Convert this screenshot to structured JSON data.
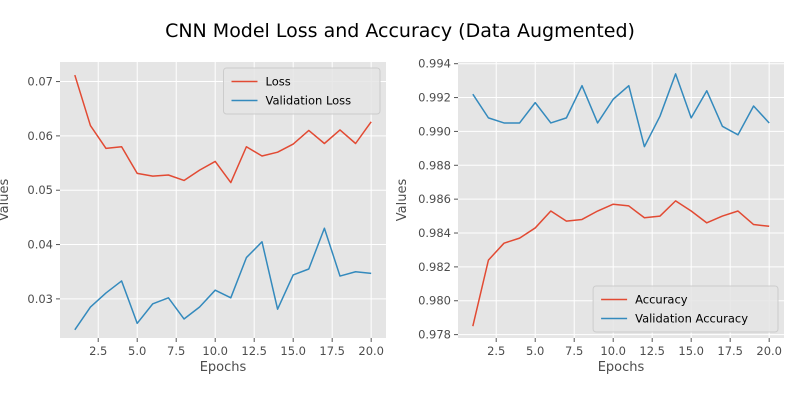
{
  "title": "CNN Model Loss and Accuracy (Data Augmented)",
  "chart_data": [
    {
      "type": "line",
      "title": "",
      "xlabel": "Epochs",
      "ylabel": "Values",
      "xlim": [
        0.05,
        20.95
      ],
      "ylim": [
        0.0228,
        0.0736
      ],
      "xticks": [
        2.5,
        5.0,
        7.5,
        10.0,
        12.5,
        15.0,
        17.5,
        20.0
      ],
      "xtick_labels": [
        "2.5",
        "5.0",
        "7.5",
        "10.0",
        "12.5",
        "15.0",
        "17.5",
        "20.0"
      ],
      "yticks": [
        0.03,
        0.04,
        0.05,
        0.06,
        0.07
      ],
      "ytick_labels": [
        "0.03",
        "0.04",
        "0.05",
        "0.06",
        "0.07"
      ],
      "grid": true,
      "legend": "top-right",
      "x": [
        1,
        2,
        3,
        4,
        5,
        6,
        7,
        8,
        9,
        10,
        11,
        12,
        13,
        14,
        15,
        16,
        17,
        18,
        19,
        20
      ],
      "series": [
        {
          "name": "Loss",
          "color": "#E24A33",
          "values": [
            0.0712,
            0.0619,
            0.0577,
            0.058,
            0.0531,
            0.0526,
            0.0528,
            0.0518,
            0.0537,
            0.0553,
            0.0514,
            0.058,
            0.0563,
            0.057,
            0.0585,
            0.061,
            0.0586,
            0.0611,
            0.0586,
            0.0626
          ]
        },
        {
          "name": "Validation Loss",
          "color": "#348ABD",
          "values": [
            0.0243,
            0.0285,
            0.0311,
            0.0333,
            0.0255,
            0.0291,
            0.0302,
            0.0263,
            0.0285,
            0.0316,
            0.0302,
            0.0376,
            0.0405,
            0.0281,
            0.0344,
            0.0355,
            0.043,
            0.0342,
            0.035,
            0.0347
          ]
        }
      ]
    },
    {
      "type": "line",
      "title": "",
      "xlabel": "Epochs",
      "ylabel": "Values",
      "xlim": [
        0.05,
        20.95
      ],
      "ylim": [
        0.9778,
        0.9941
      ],
      "xticks": [
        2.5,
        5.0,
        7.5,
        10.0,
        12.5,
        15.0,
        17.5,
        20.0
      ],
      "xtick_labels": [
        "2.5",
        "5.0",
        "7.5",
        "10.0",
        "12.5",
        "15.0",
        "17.5",
        "20.0"
      ],
      "yticks": [
        0.978,
        0.98,
        0.982,
        0.984,
        0.986,
        0.988,
        0.99,
        0.992,
        0.994
      ],
      "ytick_labels": [
        "0.978",
        "0.980",
        "0.982",
        "0.984",
        "0.986",
        "0.988",
        "0.990",
        "0.992",
        "0.994"
      ],
      "grid": true,
      "legend": "bottom-right",
      "x": [
        1,
        2,
        3,
        4,
        5,
        6,
        7,
        8,
        9,
        10,
        11,
        12,
        13,
        14,
        15,
        16,
        17,
        18,
        19,
        20
      ],
      "series": [
        {
          "name": "Accuracy",
          "color": "#E24A33",
          "values": [
            0.9785,
            0.9824,
            0.9834,
            0.9837,
            0.9843,
            0.9853,
            0.9847,
            0.9848,
            0.9853,
            0.9857,
            0.9856,
            0.9849,
            0.985,
            0.9859,
            0.9853,
            0.9846,
            0.985,
            0.9853,
            0.9845,
            0.9844
          ]
        },
        {
          "name": "Validation Accuracy",
          "color": "#348ABD",
          "values": [
            0.9922,
            0.9908,
            0.9905,
            0.9905,
            0.9917,
            0.9905,
            0.9908,
            0.9927,
            0.9905,
            0.9919,
            0.9927,
            0.9891,
            0.9909,
            0.9934,
            0.9908,
            0.9924,
            0.9903,
            0.9898,
            0.9915,
            0.9905
          ]
        }
      ]
    }
  ]
}
